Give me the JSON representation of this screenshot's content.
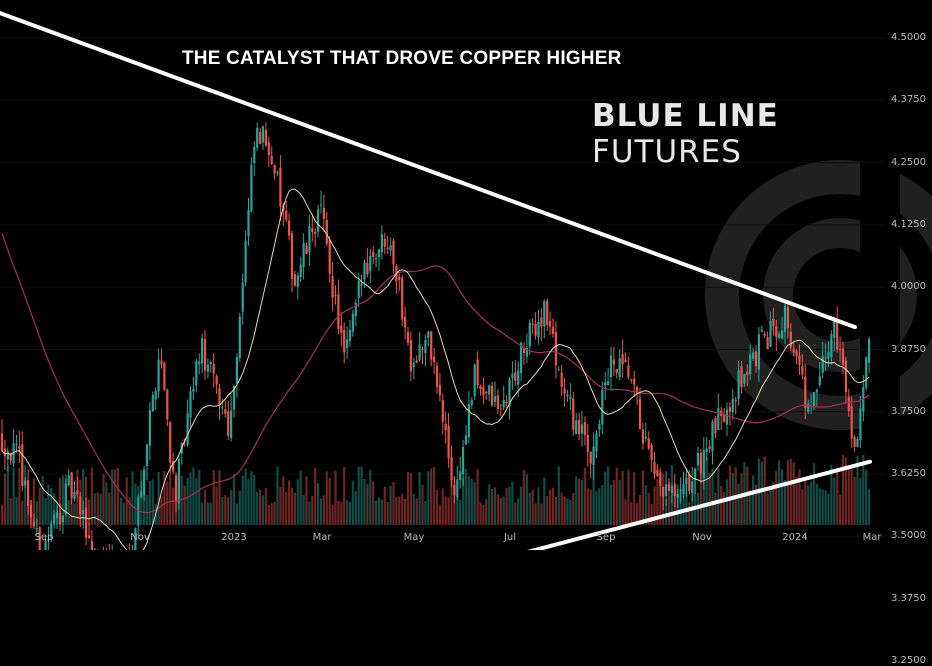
{
  "chart_data": {
    "type": "candlestick",
    "title": "THE CATALYST THAT DROVE COPPER HIGHER",
    "brand": {
      "part1": "BLUE LINE",
      "part2": "FUTURES"
    },
    "y_ticks": [
      "4.5000",
      "4.3750",
      "4.2500",
      "4.1250",
      "4.0000",
      "3.8750",
      "3.7500",
      "3.6250",
      "3.5000",
      "3.3750",
      "3.2500"
    ],
    "x_ticks": [
      "Sep",
      "Nov",
      "2023",
      "Mar",
      "May",
      "Jul",
      "Sep",
      "Nov",
      "2024",
      "Mar"
    ],
    "ylim": [
      3.2,
      4.55
    ],
    "colors": {
      "up": "#26a69a",
      "down": "#ef5350",
      "ma_fast": "#e8d8a8",
      "ma_slow": "#a0305a",
      "trendline": "#ffffff",
      "watermark": "#3a3a3a"
    },
    "price_path": [
      [
        0,
        3.7
      ],
      [
        20,
        3.65
      ],
      [
        40,
        3.46
      ],
      [
        70,
        3.6
      ],
      [
        100,
        3.44
      ],
      [
        130,
        3.45
      ],
      [
        160,
        3.88
      ],
      [
        175,
        3.58
      ],
      [
        200,
        3.88
      ],
      [
        230,
        3.72
      ],
      [
        255,
        4.3
      ],
      [
        270,
        4.29
      ],
      [
        295,
        4.01
      ],
      [
        320,
        4.16
      ],
      [
        345,
        3.85
      ],
      [
        365,
        4.05
      ],
      [
        390,
        4.11
      ],
      [
        410,
        3.86
      ],
      [
        430,
        3.89
      ],
      [
        455,
        3.58
      ],
      [
        475,
        3.82
      ],
      [
        500,
        3.75
      ],
      [
        525,
        3.88
      ],
      [
        545,
        3.96
      ],
      [
        565,
        3.78
      ],
      [
        590,
        3.66
      ],
      [
        610,
        3.84
      ],
      [
        630,
        3.82
      ],
      [
        655,
        3.6
      ],
      [
        680,
        3.57
      ],
      [
        705,
        3.67
      ],
      [
        730,
        3.78
      ],
      [
        760,
        3.88
      ],
      [
        785,
        3.95
      ],
      [
        810,
        3.74
      ],
      [
        835,
        3.93
      ],
      [
        855,
        3.68
      ],
      [
        870,
        3.89
      ]
    ],
    "trendlines": [
      {
        "name": "upper",
        "from": [
          0,
          4.55
        ],
        "to": [
          855,
          3.92
        ]
      },
      {
        "name": "lower",
        "from": [
          20,
          3.2
        ],
        "to": [
          870,
          3.65
        ]
      }
    ]
  }
}
